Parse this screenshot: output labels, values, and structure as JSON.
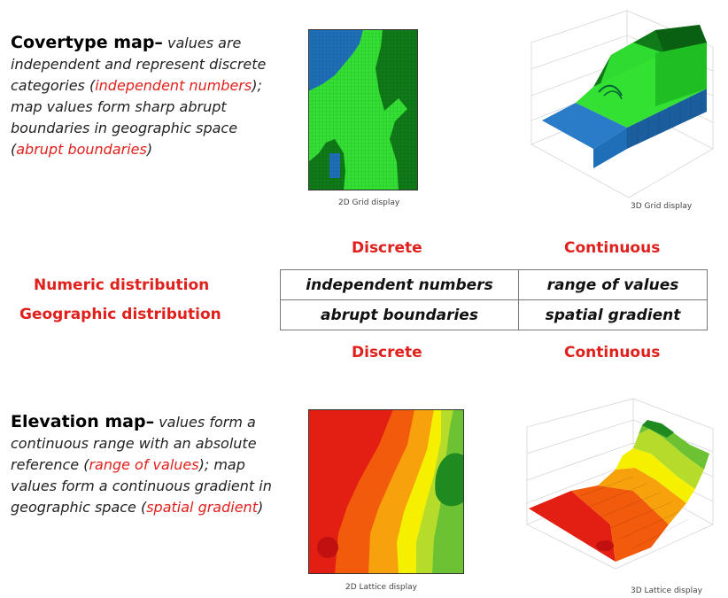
{
  "covertype": {
    "title": "Covertype map–",
    "text1": "values are independent and represent discrete categories (",
    "red1": "independent numbers",
    "text2": "); map values form sharp abrupt boundaries in geographic space (",
    "red2": "abrupt boundaries",
    "text3": ")",
    "caption_2d": "2D Grid display",
    "caption_3d": "3D Grid display"
  },
  "elevation": {
    "title": "Elevation map–",
    "text1": "values form a continuous range with an absolute reference (",
    "red1": "range of values",
    "text2": "); map values form a continuous gradient in geographic space (",
    "red2": "spatial gradient",
    "text3": ")",
    "caption_2d": "2D Lattice display",
    "caption_3d": "3D Lattice display"
  },
  "table": {
    "top_left_header": "Discrete",
    "top_right_header": "Continuous",
    "bottom_left_header": "Discrete",
    "bottom_right_header": "Continuous",
    "row1_label": "Numeric distribution",
    "row2_label": "Geographic distribution",
    "r1c1": "independent numbers",
    "r1c2": "range of values",
    "r2c1": "abrupt boundaries",
    "r2c2": "spatial gradient"
  },
  "colors": {
    "accent_red": "#e0201c",
    "cover_blue": "#1f6fb8",
    "cover_light_green": "#33e033",
    "cover_dark_green": "#0f7a17"
  }
}
